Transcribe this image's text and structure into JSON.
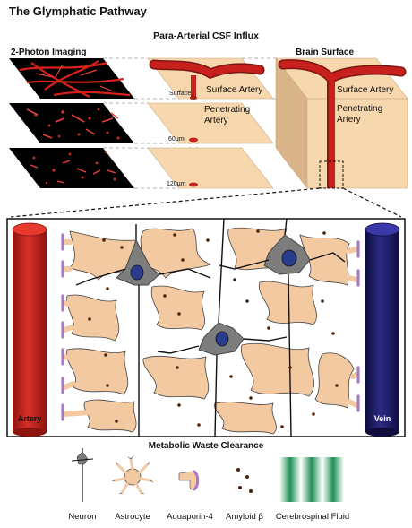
{
  "title": "The Glymphatic Pathway",
  "top_section": {
    "title": "Para-Arterial CSF Influx",
    "left_header": "2-Photon Imaging",
    "right_header": "Brain Surface",
    "labels": {
      "surface": "Surface",
      "surface_artery": "Surface Artery",
      "penetrating_artery_line1": "Penetrating",
      "penetrating_artery_line2": "Artery",
      "depth_60": "60μm",
      "depth_120": "120μm"
    }
  },
  "detail": {
    "artery_label": "Artery",
    "vein_label": "Vein"
  },
  "bottom_section": {
    "title": "Metabolic Waste Clearance",
    "legend": [
      "Neuron",
      "Astrocyte",
      "Aquaporin-4",
      "Amyloid β",
      "Cerebrospinal Fluid"
    ]
  },
  "colors": {
    "artery": "#c8201c",
    "vein": "#1c1a6e",
    "tissue": "#f7d7ae",
    "astrocyte": "#f3c9a2",
    "neuron": "#7a7a7a",
    "nucleus": "#2a3a8c",
    "aquaporin": "#a97ac2",
    "csf": "#1f8f55"
  }
}
